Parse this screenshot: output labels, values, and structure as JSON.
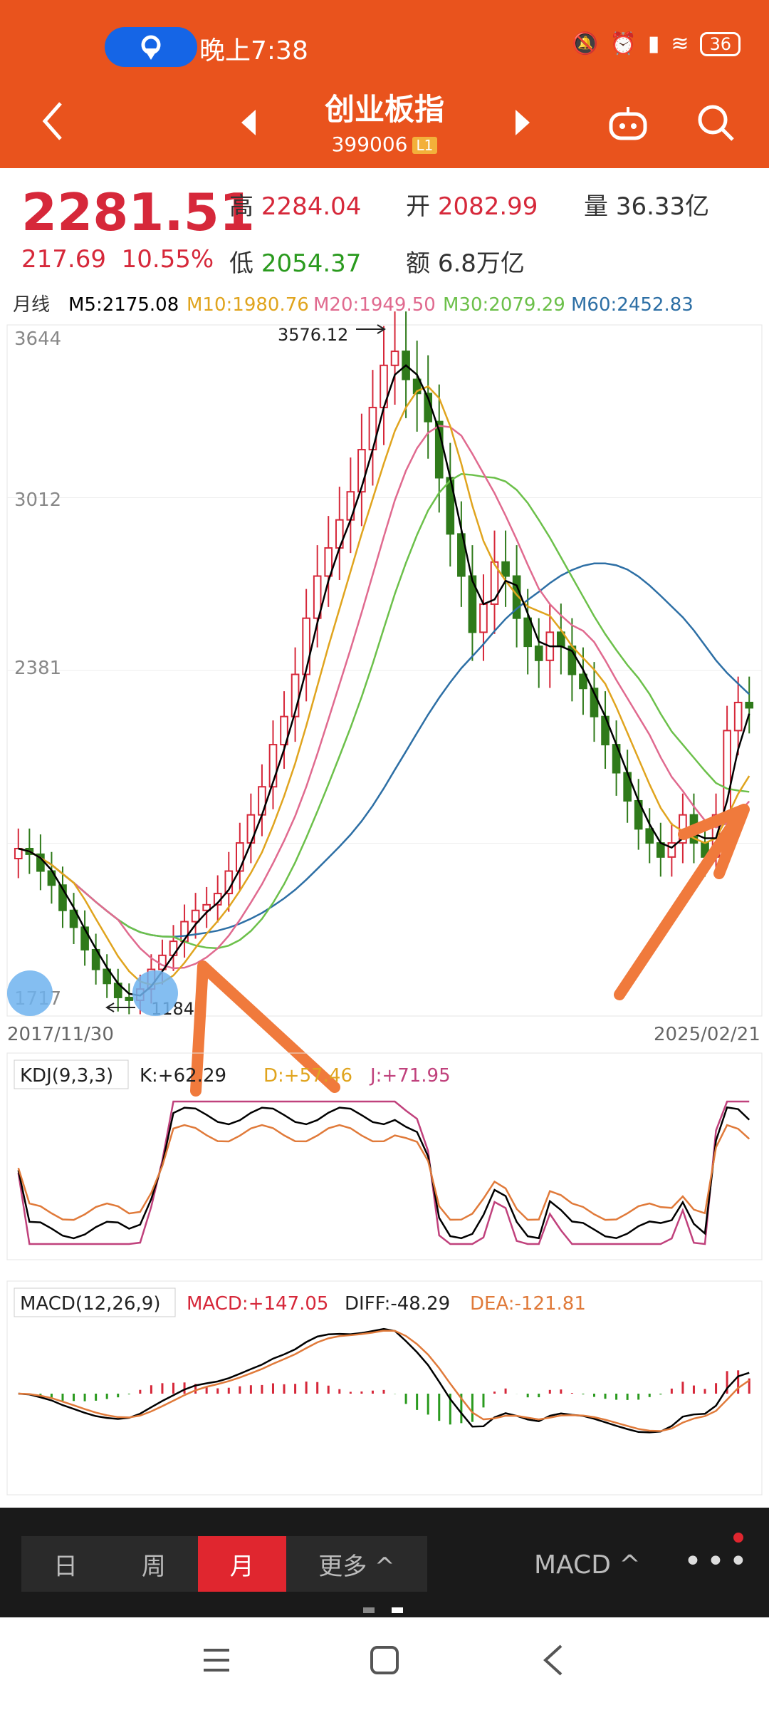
{
  "status": {
    "time": "晚上7:38",
    "battery": "36"
  },
  "header": {
    "title": "创业板指",
    "code": "399006",
    "level_badge": "L1"
  },
  "quote": {
    "price": "2281.51",
    "change": "217.69",
    "change_pct": "10.55%",
    "high_label": "高",
    "high": "2284.04",
    "open_label": "开",
    "open": "2082.99",
    "volume_label": "量",
    "volume": "36.33亿",
    "low_label": "低",
    "low": "2054.37",
    "amount_label": "额",
    "amount": "6.8万亿"
  },
  "ma_legend": {
    "period": "月线",
    "m5": "M5:2175.08",
    "m10": "M10:1980.76",
    "m20": "M20:1949.50",
    "m30": "M30:2079.29",
    "m60": "M60:2452.83",
    "colors": {
      "m5": "#000000",
      "m10": "#e0a41e",
      "m20": "#e06a8f",
      "m30": "#6cc04a",
      "m60": "#2d6fa5"
    }
  },
  "price_chart": {
    "y_ticks": [
      "3644",
      "3012",
      "2381",
      "1717"
    ],
    "high_mark": "3576.12",
    "low_mark": "1184",
    "date_start": "2017/11/30",
    "date_end": "2025/02/21"
  },
  "kdj": {
    "title": "KDJ(9,3,3)",
    "k": "K:+62.29",
    "d": "D:+57.46",
    "j": "J:+71.95"
  },
  "macd": {
    "title": "MACD(12,26,9)",
    "macd": "MACD:+147.05",
    "diff": "DIFF:-48.29",
    "dea": "DEA:-121.81"
  },
  "chart_data": {
    "type": "candlestick",
    "title": "创业板指",
    "x_range": [
      "2017/11/30",
      "2025/02/21"
    ],
    "ylim": [
      1184,
      3644
    ],
    "close": [
      1780,
      1760,
      1700,
      1650,
      1560,
      1500,
      1420,
      1350,
      1300,
      1250,
      1240,
      1280,
      1350,
      1400,
      1450,
      1520,
      1560,
      1580,
      1620,
      1700,
      1800,
      1900,
      2000,
      2150,
      2250,
      2400,
      2600,
      2750,
      2850,
      2950,
      3050,
      3200,
      3350,
      3500,
      3550,
      3450,
      3400,
      3300,
      3100,
      2900,
      2750,
      2550,
      2650,
      2800,
      2750,
      2600,
      2500,
      2450,
      2550,
      2500,
      2400,
      2350,
      2250,
      2150,
      2050,
      1950,
      1850,
      1800,
      1750,
      1800,
      1900,
      1800,
      1750,
      1900,
      2200,
      2300,
      2281
    ]
  },
  "bottom_tabs": {
    "day": "日",
    "week": "周",
    "month": "月",
    "more": "更多 ^",
    "indicator": "MACD ^",
    "dots": "•••"
  }
}
